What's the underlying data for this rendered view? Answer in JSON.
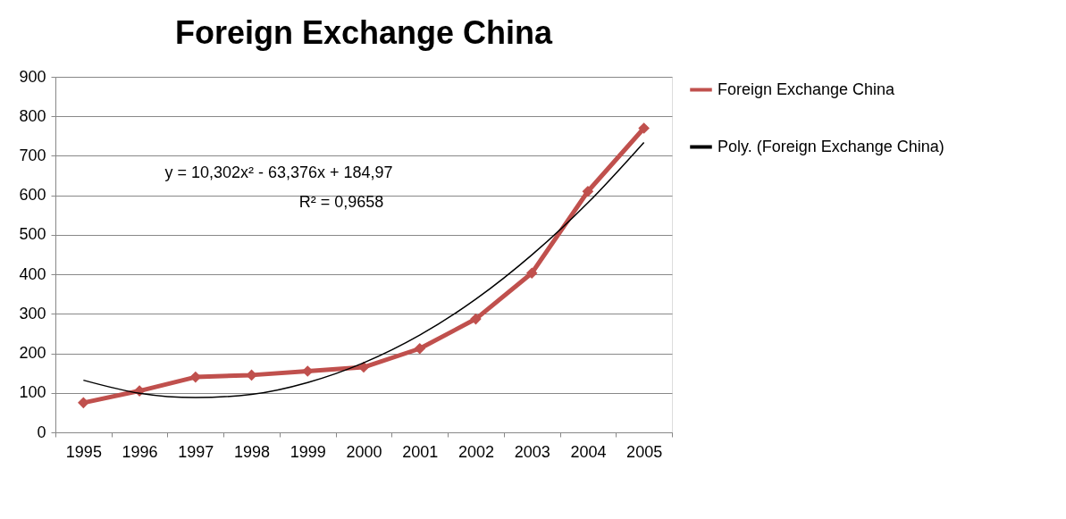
{
  "chart_data": {
    "type": "line",
    "title": "Foreign Exchange China",
    "categories": [
      "1995",
      "1996",
      "1997",
      "1998",
      "1999",
      "2000",
      "2001",
      "2002",
      "2003",
      "2004",
      "2005"
    ],
    "series": [
      {
        "name": "Foreign Exchange China",
        "color": "#c0504d",
        "marker": "diamond",
        "values": [
          75,
          105,
          140,
          145,
          155,
          165,
          212,
          287,
          403,
          610,
          770
        ]
      },
      {
        "name": "Poly. (Foreign Exchange China)",
        "color": "#000000",
        "marker": "none",
        "values": [
          132,
          99,
          88,
          96,
          126,
          176,
          246,
          337,
          449,
          581,
          734
        ]
      }
    ],
    "ylim": [
      0,
      900
    ],
    "yticks": [
      0,
      100,
      200,
      300,
      400,
      500,
      600,
      700,
      800,
      900
    ],
    "grid": "y",
    "legend": "right",
    "annotations": [
      "y = 10,302x² - 63,376x + 184,97",
      "R² = 0,9658"
    ]
  }
}
